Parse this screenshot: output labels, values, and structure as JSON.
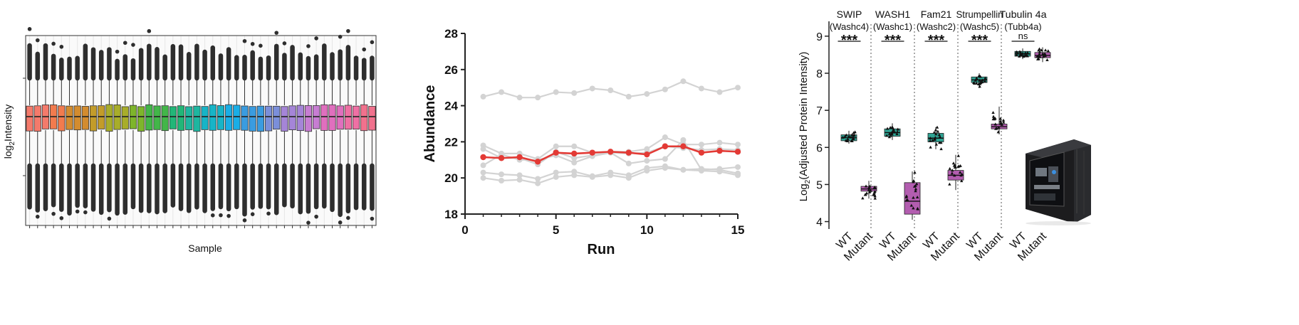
{
  "chart_data": [
    {
      "type": "box",
      "xlabel": "Sample",
      "ylabel": "log2 Intensity",
      "ylabel_main": "log",
      "ylabel_sub": "2",
      "ylabel_rest": "Intensity",
      "n_samples": 44,
      "grid": true,
      "colors": [
        "#f47a6b",
        "#f27b4e",
        "#d38c2f",
        "#c39c2a",
        "#a8ad2a",
        "#7eb52b",
        "#43b649",
        "#22b678",
        "#1eb6a0",
        "#17b4c7",
        "#1aaee6",
        "#3a9ce0",
        "#7b8fda",
        "#a585d8",
        "#c77dd2",
        "#e06fbe",
        "#ef70a4",
        "#f1718d"
      ]
    },
    {
      "type": "line",
      "xlabel": "Run",
      "ylabel": "Abundance",
      "xlim": [
        0,
        15
      ],
      "ylim": [
        18,
        28
      ],
      "xticks": [
        "0",
        "5",
        "10",
        "15"
      ],
      "yticks": [
        "18",
        "20",
        "22",
        "24",
        "26",
        "28"
      ],
      "x": [
        1,
        2,
        3,
        4,
        5,
        6,
        7,
        8,
        9,
        10,
        11,
        12,
        13,
        14,
        15
      ],
      "series": [
        {
          "color": "#d3d3d3",
          "highlight": false,
          "values": [
            24.5,
            24.75,
            24.45,
            24.45,
            24.75,
            24.7,
            24.95,
            24.85,
            24.5,
            24.65,
            24.9,
            25.35,
            24.95,
            24.75,
            25.0
          ]
        },
        {
          "color": "#d3d3d3",
          "highlight": false,
          "values": [
            21.8,
            21.35,
            21.35,
            21.05,
            21.75,
            21.75,
            21.4,
            21.45,
            21.45,
            21.6,
            22.25,
            21.85,
            21.85,
            21.95,
            21.85
          ]
        },
        {
          "color": "#d3d3d3",
          "highlight": false,
          "values": [
            21.6,
            21.1,
            21.1,
            20.75,
            21.45,
            21.1,
            21.25,
            21.4,
            21.35,
            21.4,
            21.75,
            21.65,
            21.55,
            21.6,
            21.55
          ]
        },
        {
          "color": "#d3d3d3",
          "highlight": false,
          "values": [
            20.7,
            21.3,
            21.0,
            21.0,
            21.25,
            20.85,
            21.2,
            21.4,
            20.8,
            20.95,
            21.05,
            22.1,
            20.45,
            20.5,
            20.6
          ]
        },
        {
          "color": "#d3d3d3",
          "highlight": false,
          "values": [
            20.3,
            20.2,
            20.15,
            19.95,
            20.3,
            20.35,
            20.1,
            20.3,
            20.15,
            20.55,
            20.65,
            20.45,
            20.5,
            20.45,
            20.25
          ]
        },
        {
          "color": "#d3d3d3",
          "highlight": false,
          "values": [
            20.0,
            19.85,
            19.9,
            19.7,
            20.05,
            20.15,
            20.05,
            20.15,
            20.0,
            20.4,
            20.55,
            20.45,
            20.4,
            20.35,
            20.15
          ]
        },
        {
          "color": "#e33a35",
          "highlight": true,
          "values": [
            21.15,
            21.1,
            21.15,
            20.9,
            21.4,
            21.35,
            21.4,
            21.45,
            21.4,
            21.3,
            21.75,
            21.75,
            21.4,
            21.5,
            21.45
          ]
        }
      ]
    },
    {
      "type": "box",
      "ylabel": "Log2(Adjusted Protein Intensity)",
      "ylabel_a": "Log",
      "ylabel_sub": "2",
      "ylabel_b": "(Adjusted Protein Intensity)",
      "ylim": [
        3.8,
        9.4
      ],
      "yticks": [
        "4",
        "5",
        "6",
        "7",
        "8",
        "9"
      ],
      "colors": {
        "WT": "#2ea393",
        "Mutant": "#b35db0"
      },
      "groups": [
        {
          "name": "SWIP",
          "gene": "(Washc4)",
          "sig": "***",
          "WT": {
            "q1": 6.18,
            "median": 6.26,
            "q3": 6.34,
            "min": 6.1,
            "max": 6.45
          },
          "Mutant": {
            "q1": 4.82,
            "median": 4.88,
            "q3": 4.95,
            "min": 4.62,
            "max": 5.1
          }
        },
        {
          "name": "WASH1",
          "gene": "(Washc1)",
          "sig": "***",
          "WT": {
            "q1": 6.3,
            "median": 6.4,
            "q3": 6.5,
            "min": 6.2,
            "max": 6.65
          },
          "Mutant": {
            "q1": 4.2,
            "median": 4.55,
            "q3": 5.05,
            "min": 4.05,
            "max": 5.35
          }
        },
        {
          "name": "Fam21",
          "gene": "(Washc2)",
          "sig": "***",
          "WT": {
            "q1": 6.15,
            "median": 6.25,
            "q3": 6.38,
            "min": 5.95,
            "max": 6.55
          },
          "Mutant": {
            "q1": 5.12,
            "median": 5.25,
            "q3": 5.38,
            "min": 4.85,
            "max": 5.8
          }
        },
        {
          "name": "Strumpellin",
          "gene": "(Washc5)",
          "sig": "***",
          "WT": {
            "q1": 7.75,
            "median": 7.82,
            "q3": 7.9,
            "min": 7.6,
            "max": 8.0
          },
          "Mutant": {
            "q1": 6.5,
            "median": 6.56,
            "q3": 6.63,
            "min": 6.35,
            "max": 7.1
          }
        },
        {
          "name": "Tubulin 4a",
          "gene": "(Tubb4a)",
          "sig": "ns",
          "WT": {
            "q1": 8.46,
            "median": 8.52,
            "q3": 8.59,
            "min": 8.38,
            "max": 8.67
          },
          "Mutant": {
            "q1": 8.42,
            "median": 8.48,
            "q3": 8.56,
            "min": 8.3,
            "max": 8.7
          }
        }
      ],
      "xtick_labels": [
        "WT",
        "Mutant"
      ]
    }
  ]
}
